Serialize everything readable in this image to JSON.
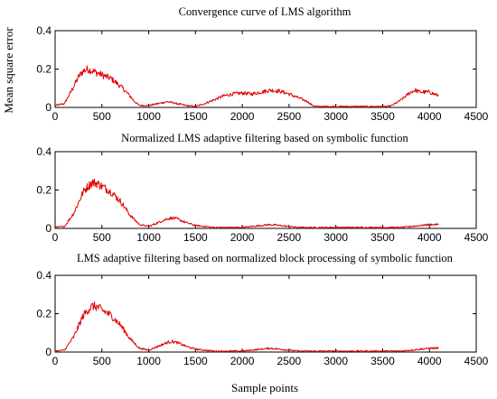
{
  "figure": {
    "ylabel": "Mean square error",
    "xlabel": "Sample points",
    "line_color": "#e00000"
  },
  "chart_data": [
    {
      "type": "line",
      "title": "Convergence curve of LMS algorithm",
      "xlim": [
        0,
        4500
      ],
      "ylim": [
        0,
        0.4
      ],
      "xticks": [
        0,
        500,
        1000,
        1500,
        2000,
        2500,
        3000,
        3500,
        4000,
        4500
      ],
      "yticks": [
        0,
        0.2,
        0.4
      ],
      "ytick_labels": [
        "0",
        "0.2",
        "0.4"
      ],
      "grid": false,
      "series": [
        {
          "x": [
            0,
            100,
            200,
            250,
            300,
            350,
            400,
            500,
            600,
            700,
            800,
            850,
            900,
            1000,
            1100,
            1200,
            1250,
            1300,
            1400,
            1500,
            1600,
            1700,
            1800,
            1900,
            2000,
            2100,
            2200,
            2300,
            2400,
            2500,
            2600,
            2700,
            2750,
            2800,
            2900,
            3000,
            3100,
            3200,
            3300,
            3400,
            3500,
            3550,
            3600,
            3700,
            3800,
            3850,
            3900,
            4000,
            4100
          ],
          "y": [
            0.01,
            0.02,
            0.11,
            0.16,
            0.19,
            0.2,
            0.19,
            0.17,
            0.15,
            0.11,
            0.06,
            0.03,
            0.01,
            0.01,
            0.02,
            0.03,
            0.025,
            0.02,
            0.01,
            0.005,
            0.02,
            0.04,
            0.06,
            0.07,
            0.075,
            0.07,
            0.08,
            0.09,
            0.085,
            0.07,
            0.05,
            0.03,
            0.01,
            0.005,
            0.005,
            0.005,
            0.005,
            0.005,
            0.005,
            0.005,
            0.005,
            0.005,
            0.01,
            0.04,
            0.08,
            0.09,
            0.08,
            0.08,
            0.06
          ]
        }
      ]
    },
    {
      "type": "line",
      "title": "Normalized LMS adaptive filtering based on symbolic function",
      "xlim": [
        0,
        4500
      ],
      "ylim": [
        0,
        0.4
      ],
      "xticks": [
        0,
        500,
        1000,
        1500,
        2000,
        2500,
        3000,
        3500,
        4000,
        4500
      ],
      "yticks": [
        0,
        0.2,
        0.4
      ],
      "ytick_labels": [
        "0",
        "0.2",
        "0.4"
      ],
      "grid": false,
      "series": [
        {
          "x": [
            0,
            100,
            200,
            300,
            350,
            400,
            450,
            500,
            600,
            700,
            800,
            900,
            1000,
            1100,
            1200,
            1250,
            1300,
            1400,
            1500,
            1600,
            1700,
            1800,
            1900,
            2000,
            2100,
            2200,
            2300,
            2400,
            2500,
            2600,
            2700,
            2800,
            2900,
            3000,
            3500,
            3700,
            3800,
            3900,
            4000,
            4100
          ],
          "y": [
            0.005,
            0.01,
            0.08,
            0.19,
            0.22,
            0.24,
            0.235,
            0.22,
            0.19,
            0.14,
            0.07,
            0.02,
            0.01,
            0.03,
            0.05,
            0.055,
            0.05,
            0.03,
            0.015,
            0.01,
            0.005,
            0.005,
            0.005,
            0.005,
            0.01,
            0.015,
            0.02,
            0.015,
            0.01,
            0.005,
            0.005,
            0.005,
            0.005,
            0.005,
            0.005,
            0.005,
            0.01,
            0.015,
            0.02,
            0.02
          ]
        }
      ]
    },
    {
      "type": "line",
      "title": "LMS adaptive filtering based on normalized block processing of symbolic function",
      "xlim": [
        0,
        4500
      ],
      "ylim": [
        0,
        0.4
      ],
      "xticks": [
        0,
        500,
        1000,
        1500,
        2000,
        2500,
        3000,
        3500,
        4000,
        4500
      ],
      "yticks": [
        0,
        0.2,
        0.4
      ],
      "ytick_labels": [
        "0",
        "0.2",
        "0.4"
      ],
      "grid": false,
      "series": [
        {
          "x": [
            0,
            100,
            200,
            300,
            350,
            400,
            450,
            500,
            600,
            700,
            800,
            900,
            1000,
            1100,
            1200,
            1250,
            1300,
            1400,
            1500,
            1600,
            1700,
            1800,
            1900,
            2000,
            2100,
            2200,
            2300,
            2400,
            2500,
            2600,
            2700,
            2800,
            2900,
            3000,
            3500,
            3700,
            3800,
            3900,
            4000,
            4100
          ],
          "y": [
            0.005,
            0.01,
            0.08,
            0.19,
            0.22,
            0.24,
            0.235,
            0.22,
            0.19,
            0.14,
            0.07,
            0.02,
            0.01,
            0.03,
            0.05,
            0.055,
            0.05,
            0.03,
            0.015,
            0.01,
            0.005,
            0.005,
            0.005,
            0.005,
            0.01,
            0.015,
            0.02,
            0.015,
            0.01,
            0.005,
            0.005,
            0.005,
            0.005,
            0.005,
            0.005,
            0.005,
            0.01,
            0.015,
            0.02,
            0.02
          ]
        }
      ]
    }
  ]
}
